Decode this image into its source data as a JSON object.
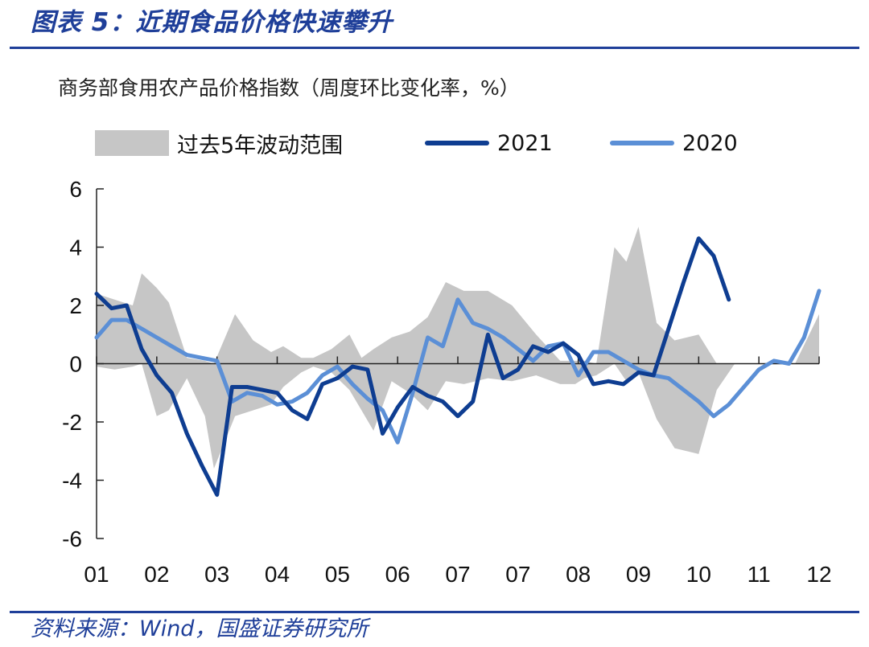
{
  "header": {
    "figure_title": "图表 5：近期食品价格快速攀升",
    "subtitle": "商务部食用农产品价格指数（周度环比变化率，%）",
    "source": "资料来源：Wind，国盛证券研究所"
  },
  "colors": {
    "brand": "#1f3f99",
    "series_2021": "#0e3d91",
    "series_2020": "#5b8fd6",
    "band": "#c6c6c6"
  },
  "chart_data": {
    "type": "line",
    "xlabel": "",
    "ylabel": "",
    "ylim": [
      -6,
      6
    ],
    "yticks": [
      6,
      4,
      2,
      0,
      -2,
      -4,
      -6
    ],
    "xlim": [
      1,
      13
    ],
    "x_tick_labels": [
      "01",
      "02",
      "03",
      "04",
      "05",
      "06",
      "07",
      "07",
      "08",
      "09",
      "10",
      "11",
      "12"
    ],
    "grid": false,
    "legend_position": "top",
    "legend": [
      "过去5年波动范围",
      "2021",
      "2020"
    ],
    "band": {
      "name": "过去5年波动范围",
      "x": [
        1.0,
        1.3,
        1.6,
        1.75,
        2.0,
        2.2,
        2.5,
        2.8,
        2.95,
        3.3,
        3.6,
        3.9,
        4.1,
        4.4,
        4.6,
        4.9,
        5.2,
        5.4,
        5.6,
        5.9,
        6.2,
        6.5,
        6.8,
        7.1,
        7.5,
        7.9,
        8.3,
        8.7,
        8.95,
        9.1,
        9.3,
        9.6,
        9.8,
        10.0,
        10.3,
        10.6,
        11.0,
        11.3,
        11.6,
        12.0,
        12.3,
        12.6,
        13.0
      ],
      "upper": [
        2.4,
        2.2,
        2.0,
        3.1,
        2.6,
        2.1,
        0.2,
        0.1,
        0.0,
        1.7,
        0.8,
        0.4,
        0.6,
        0.2,
        0.2,
        0.5,
        1.0,
        0.2,
        0.5,
        0.9,
        1.1,
        1.6,
        2.8,
        2.5,
        2.5,
        2.0,
        1.0,
        0.1,
        0.1,
        0.1,
        0.0,
        4.0,
        3.5,
        4.7,
        1.4,
        0.8,
        1.0,
        0.0,
        0.0,
        0.0,
        0.0,
        0.0,
        1.7
      ],
      "lower": [
        -0.1,
        -0.2,
        -0.1,
        0.0,
        -1.8,
        -1.6,
        -0.5,
        -1.8,
        -3.6,
        -1.8,
        -1.6,
        -1.4,
        -0.8,
        -0.3,
        -0.1,
        -0.3,
        -0.9,
        -1.6,
        -2.3,
        -0.6,
        -1.0,
        -1.6,
        -0.6,
        -0.7,
        -0.5,
        -0.6,
        -0.4,
        -0.7,
        -0.7,
        -0.5,
        -0.4,
        0.0,
        -0.6,
        -0.3,
        -1.9,
        -2.9,
        -3.1,
        -0.9,
        0.0,
        0.0,
        0.0,
        0.0,
        0.0
      ]
    },
    "series": [
      {
        "name": "2021",
        "x": [
          1.0,
          1.25,
          1.5,
          1.75,
          2.0,
          2.25,
          2.5,
          2.75,
          3.0,
          3.25,
          3.5,
          3.75,
          4.0,
          4.25,
          4.5,
          4.75,
          5.0,
          5.25,
          5.5,
          5.75,
          6.0,
          6.25,
          6.5,
          6.75,
          7.0,
          7.25,
          7.5,
          7.75,
          8.0,
          8.25,
          8.5,
          8.75,
          9.0,
          9.25,
          9.5,
          9.75,
          10.0,
          10.25,
          10.5,
          10.75,
          11.0,
          11.25,
          11.5
        ],
        "values": [
          2.4,
          1.9,
          2.0,
          0.5,
          -0.4,
          -1.0,
          -2.4,
          -3.5,
          -4.5,
          -0.8,
          -0.8,
          -0.9,
          -1.0,
          -1.6,
          -1.9,
          -0.7,
          -0.5,
          -0.1,
          -0.2,
          -2.4,
          -1.5,
          -0.8,
          -1.1,
          -1.3,
          -1.8,
          -1.3,
          1.0,
          -0.5,
          -0.2,
          0.6,
          0.4,
          0.7,
          0.3,
          -0.7,
          -0.6,
          -0.7,
          -0.3,
          -0.4,
          1.2,
          2.8,
          4.3,
          3.7,
          2.2
        ]
      },
      {
        "name": "2020",
        "x": [
          1.0,
          1.25,
          1.5,
          1.75,
          2.0,
          2.25,
          2.5,
          2.75,
          3.0,
          3.25,
          3.5,
          3.75,
          4.0,
          4.25,
          4.5,
          4.75,
          5.0,
          5.25,
          5.5,
          5.75,
          6.0,
          6.25,
          6.5,
          6.75,
          7.0,
          7.25,
          7.5,
          7.75,
          8.0,
          8.25,
          8.5,
          8.75,
          9.0,
          9.25,
          9.5,
          9.75,
          10.0,
          10.25,
          10.5,
          10.75,
          11.0,
          11.25,
          11.5,
          11.75,
          12.0,
          12.25,
          12.5,
          12.75,
          13.0
        ],
        "values": [
          0.9,
          1.5,
          1.5,
          1.2,
          0.9,
          0.6,
          0.3,
          0.2,
          0.1,
          -1.3,
          -1.0,
          -1.1,
          -1.4,
          -1.3,
          -1.0,
          -0.4,
          -0.1,
          -0.7,
          -1.2,
          -1.6,
          -2.7,
          -1.0,
          0.9,
          0.6,
          2.2,
          1.4,
          1.2,
          0.9,
          0.5,
          0.1,
          0.6,
          0.7,
          -0.4,
          0.4,
          0.4,
          0.1,
          -0.2,
          -0.4,
          -0.5,
          -0.9,
          -1.3,
          -1.8,
          -1.4,
          -0.8,
          -0.2,
          0.1,
          0.0,
          0.9,
          2.5
        ]
      }
    ]
  }
}
